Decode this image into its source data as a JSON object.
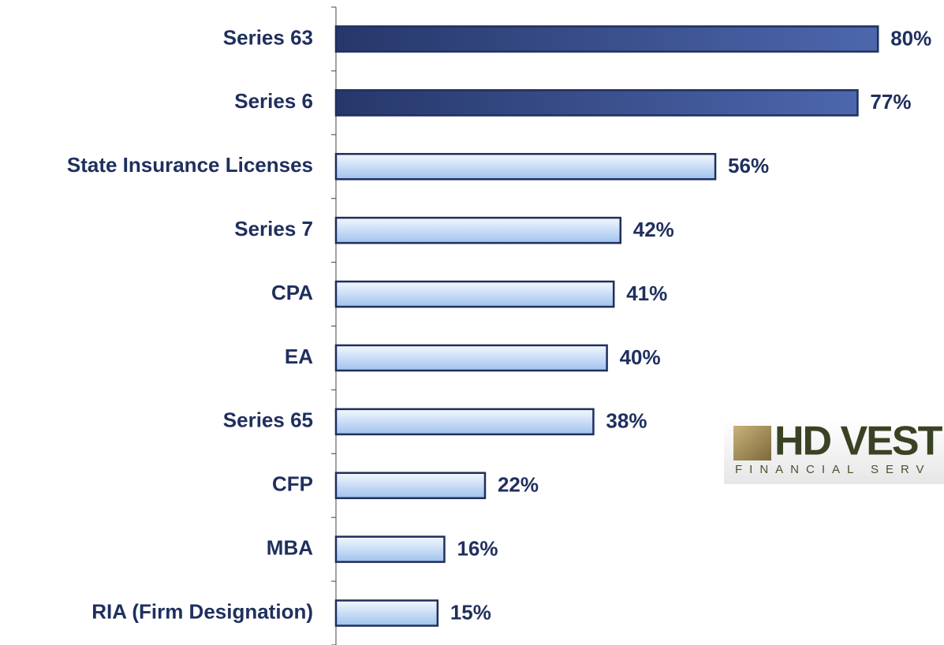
{
  "chart_data": {
    "type": "barh",
    "categories": [
      "Series 63",
      "Series 6",
      "State Insurance Licenses",
      "Series 7",
      "CPA",
      "EA",
      "Series 65",
      "CFP",
      "MBA",
      "RIA (Firm Designation)"
    ],
    "values": [
      80,
      77,
      56,
      42,
      41,
      40,
      38,
      22,
      16,
      15
    ],
    "value_labels": [
      "80%",
      "77%",
      "56%",
      "42%",
      "41%",
      "40%",
      "38%",
      "22%",
      "16%",
      "15%"
    ],
    "colors": [
      "#34487f",
      "#34487f",
      "#c7dcf5",
      "#c7dcf5",
      "#c7dcf5",
      "#c7dcf5",
      "#c7dcf5",
      "#c7dcf5",
      "#c7dcf5",
      "#c7dcf5"
    ],
    "xlim": [
      0,
      100
    ]
  },
  "logo": {
    "name": "HD VEST",
    "tagline": "FINANCIAL SERV"
  }
}
